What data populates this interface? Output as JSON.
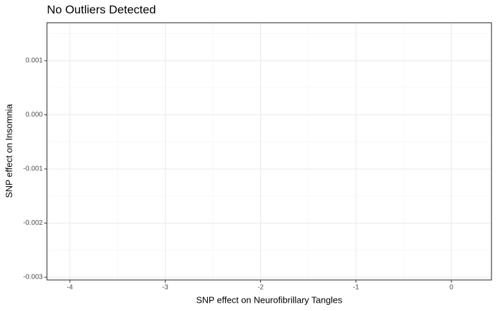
{
  "chart_data": {
    "type": "scatter",
    "title": "No Outliers Detected",
    "x_label": "SNP effect on Neurofibrillary Tangles",
    "y_label": "SNP effect on Insomnia",
    "xlim": [
      -4.24,
      0.42
    ],
    "xticks": [
      -4,
      -3,
      -2,
      -1,
      0
    ],
    "ylim": [
      -0.00305,
      0.0017
    ],
    "yticks": [
      0.001,
      {
        "value": 0,
        "label": "0.000"
      },
      -0.001,
      -0.002,
      -0.003
    ],
    "grid": true
  }
}
